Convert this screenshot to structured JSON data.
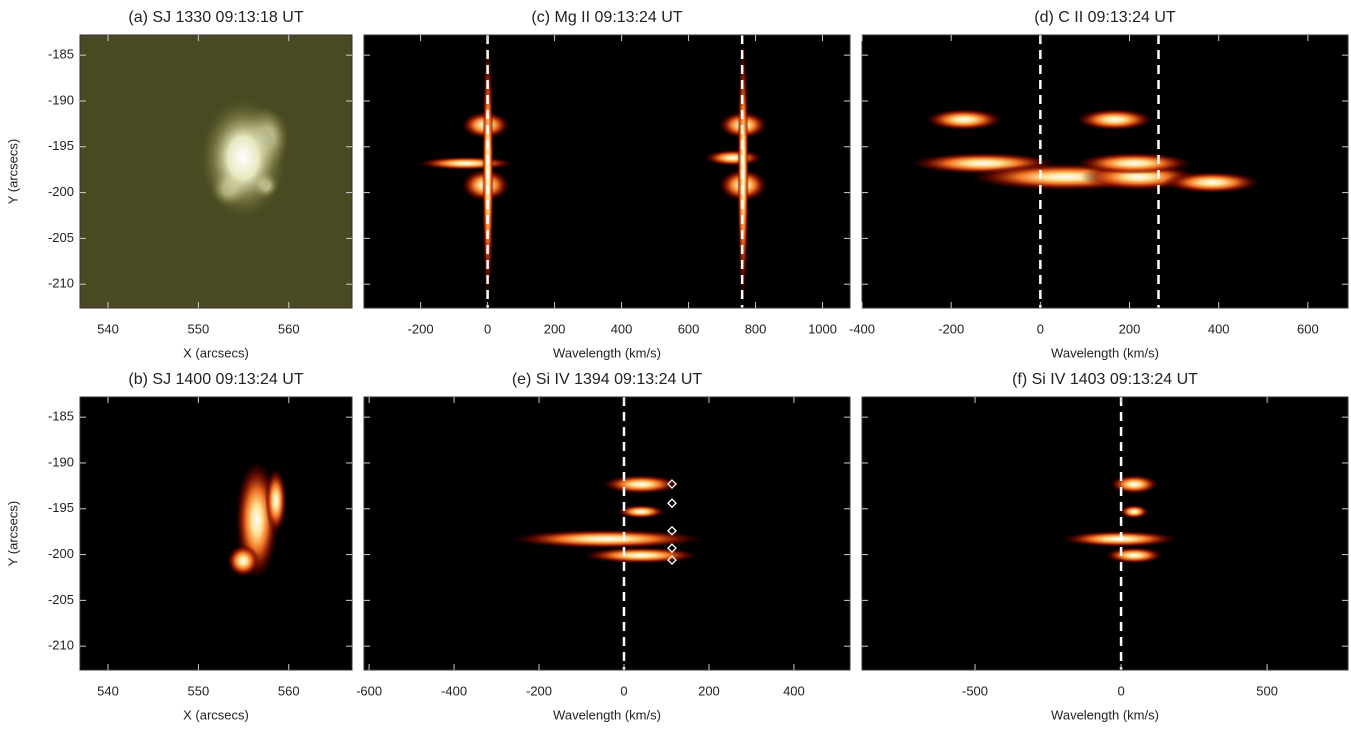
{
  "chart_data": [
    {
      "type": "image",
      "title": "(a) SJ 1330  09:13:18 UT",
      "xlabel": "X (arcsecs)",
      "ylabel": "Y (arcsecs)",
      "xlim": [
        536.9,
        567
      ],
      "ylim": [
        -212.6,
        -182.8
      ],
      "xticks": [
        540,
        550,
        560
      ],
      "yticks": [
        -185,
        -190,
        -195,
        -200,
        -205,
        -210
      ],
      "colormap": "olive",
      "ytick_labels": true
    },
    {
      "type": "image",
      "title": "(c) Mg II 09:13:24 UT",
      "xlabel": "Wavelength (km/s)",
      "xlim": [
        -369,
        1082
      ],
      "ylim": [
        -212.6,
        -182.8
      ],
      "xticks": [
        -200,
        0,
        200,
        400,
        600,
        800,
        1000
      ],
      "yticks": [
        -185,
        -190,
        -195,
        -200,
        -205,
        -210
      ],
      "colormap": "fire",
      "ytick_labels": false,
      "ref_lines": [
        0,
        760
      ]
    },
    {
      "type": "image",
      "title": "(d) C II 09:13:24 UT",
      "xlabel": "Wavelength (km/s)",
      "xlim": [
        -400,
        690
      ],
      "ylim": [
        -212.6,
        -182.8
      ],
      "xticks": [
        -400,
        -200,
        0,
        200,
        400,
        600
      ],
      "yticks": [
        -185,
        -190,
        -195,
        -200,
        -205,
        -210
      ],
      "colormap": "fire",
      "ytick_labels": false,
      "ref_lines": [
        0,
        265
      ]
    },
    {
      "type": "image",
      "title": "(b) SJ 1400  09:13:24 UT",
      "xlabel": "X (arcsecs)",
      "ylabel": "Y (arcsecs)",
      "xlim": [
        536.9,
        567
      ],
      "ylim": [
        -212.6,
        -182.8
      ],
      "xticks": [
        540,
        550,
        560
      ],
      "yticks": [
        -185,
        -190,
        -195,
        -200,
        -205,
        -210
      ],
      "colormap": "fire",
      "ytick_labels": true
    },
    {
      "type": "image",
      "title": "(e) Si IV 1394 09:13:24 UT",
      "xlabel": "Wavelength (km/s)",
      "xlim": [
        -612,
        532
      ],
      "ylim": [
        -212.6,
        -182.8
      ],
      "xticks": [
        -600,
        -400,
        -200,
        0,
        200,
        400
      ],
      "yticks": [
        -185,
        -190,
        -195,
        -200,
        -205,
        -210
      ],
      "colormap": "fire",
      "ytick_labels": false,
      "ref_lines": [
        0
      ],
      "markers": {
        "x": [
          113,
          113,
          113,
          113,
          113
        ],
        "y": [
          -192.3,
          -194.4,
          -197.4,
          -199.3,
          -200.6
        ],
        "color": "#ffffff"
      }
    },
    {
      "type": "image",
      "title": "(f) Si IV 1403 09:13:24 UT",
      "xlabel": "Wavelength (km/s)",
      "xlim": [
        -887,
        777
      ],
      "ylim": [
        -212.6,
        -182.8
      ],
      "xticks": [
        -500,
        0,
        500
      ],
      "yticks": [
        -185,
        -190,
        -195,
        -200,
        -205,
        -210
      ],
      "colormap": "fire",
      "ytick_labels": false,
      "ref_lines": [
        0
      ]
    }
  ]
}
